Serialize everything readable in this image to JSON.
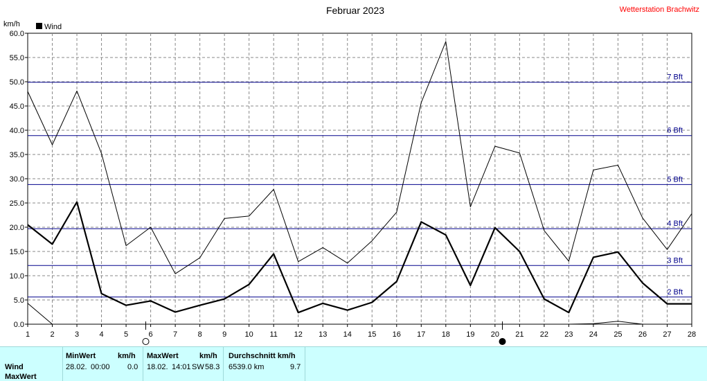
{
  "header": {
    "station": "Wetterstation Brachwitz"
  },
  "chart_data": {
    "type": "line",
    "title": "Februar 2023",
    "ylabel": "km/h",
    "xlim": [
      1,
      28
    ],
    "ylim": [
      0,
      60
    ],
    "x_ticks": [
      1,
      2,
      3,
      4,
      5,
      6,
      7,
      8,
      9,
      10,
      11,
      12,
      13,
      14,
      15,
      16,
      17,
      18,
      19,
      20,
      21,
      22,
      23,
      24,
      25,
      26,
      27,
      28
    ],
    "y_ticks": [
      "0.0",
      "5.0",
      "10.0",
      "15.0",
      "20.0",
      "25.0",
      "30.0",
      "35.0",
      "40.0",
      "45.0",
      "50.0",
      "55.0",
      "60.0"
    ],
    "grid": true,
    "legend": {
      "position": "top-left",
      "label": "Wind"
    },
    "series": [
      {
        "name": "Wind",
        "role": "average",
        "x": [
          1,
          2,
          3,
          4,
          5,
          6,
          7,
          8,
          9,
          10,
          11,
          12,
          13,
          14,
          15,
          16,
          17,
          18,
          19,
          20,
          21,
          22,
          23,
          24,
          25,
          26,
          27,
          28
        ],
        "values": [
          20.5,
          16.5,
          25.2,
          6.3,
          3.9,
          4.8,
          2.5,
          3.9,
          5.2,
          8.2,
          14.5,
          2.4,
          4.3,
          2.9,
          4.5,
          8.8,
          21.1,
          18.4,
          8.0,
          19.9,
          15.0,
          5.2,
          2.4,
          13.8,
          14.9,
          8.5,
          4.2,
          4.2
        ]
      },
      {
        "role": "gust",
        "x": [
          1,
          2,
          3,
          4,
          5,
          6,
          7,
          8,
          9,
          10,
          11,
          12,
          13,
          14,
          15,
          16,
          17,
          18,
          19,
          20,
          21,
          22,
          23,
          24,
          25,
          26,
          27,
          28
        ],
        "values": [
          48.0,
          37.0,
          48.1,
          35.2,
          16.2,
          20.0,
          10.4,
          13.7,
          21.8,
          22.3,
          27.8,
          12.9,
          15.8,
          12.6,
          17.2,
          23.1,
          45.7,
          58.3,
          24.2,
          36.7,
          35.3,
          19.3,
          13.0,
          31.8,
          32.8,
          21.9,
          15.4,
          22.8
        ]
      },
      {
        "role": "minimum",
        "x": [
          1,
          2,
          23,
          24,
          25,
          26
        ],
        "values": [
          4.3,
          0.0,
          0.0,
          0.1,
          0.6,
          0.0
        ]
      }
    ],
    "beaufort_lines": [
      {
        "label": "2 Bft",
        "value": 5.6
      },
      {
        "label": "3 Bft",
        "value": 12.1
      },
      {
        "label": "4 Bft",
        "value": 19.7
      },
      {
        "label": "5 Bft",
        "value": 28.8
      },
      {
        "label": "6 Bft",
        "value": 38.9
      },
      {
        "label": "7 Bft",
        "value": 49.9
      }
    ],
    "moon_phases": [
      {
        "day": 5.8,
        "phase": "full"
      },
      {
        "day": 20.3,
        "phase": "new"
      }
    ]
  },
  "summary": {
    "row_labels": [
      "Wind",
      "MaxWert"
    ],
    "min": {
      "header": "MinWert",
      "unit": "km/h",
      "date": "28.02.",
      "time": "00:00",
      "value": "0.0"
    },
    "max": {
      "header": "MaxWert",
      "unit": "km/h",
      "date": "18.02.",
      "time": "14:01",
      "dir": "SW",
      "value": "58.3"
    },
    "avg": {
      "header": "Durchschnitt km/h",
      "distance": "6539.0 km",
      "value": "9.7"
    }
  }
}
